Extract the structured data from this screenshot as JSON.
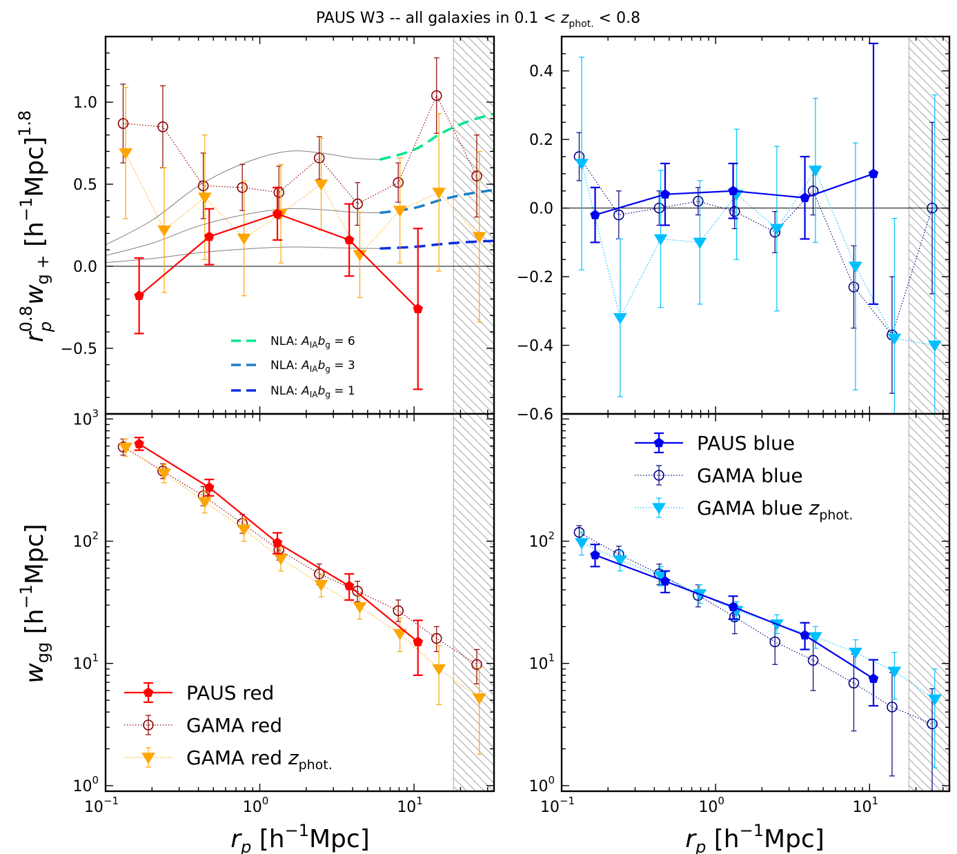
{
  "figure": {
    "title_prefix": "PAUS W3 -- all galaxies in 0.1 < ",
    "title_z": "z",
    "title_z_sub": "phot.",
    "title_suffix": " < 0.8"
  },
  "labels": {
    "wgplus_ylabel_r": "r",
    "wgplus_ylabel_r_sup": "0.8",
    "wgplus_ylabel_r_sub": "p",
    "wgplus_ylabel_w": "w",
    "wgplus_ylabel_w_sub": "g +",
    "wgplus_ylabel_unit": " [h",
    "wgplus_ylabel_unit_sup": "−1",
    "wgplus_ylabel_unit_end": "Mpc]",
    "wgplus_ylabel_pow": "1.8",
    "wgg_ylabel_w": "w",
    "wgg_ylabel_sub": "gg",
    "wgg_ylabel_unit": " [h",
    "wgg_ylabel_unit_sup": "−1",
    "wgg_ylabel_unit_end": "Mpc]",
    "xlabel_r": "r",
    "xlabel_r_sub": "p",
    "xlabel_unit": " [h",
    "xlabel_unit_sup": "−1",
    "xlabel_unit_end": "Mpc]"
  },
  "colors": {
    "paus_red": "#ff0000",
    "gama_red": "#8b0000",
    "gama_red_zphot": "#ffa500",
    "paus_blue": "#0000ee",
    "gama_blue": "#000080",
    "gama_blue_zphot": "#00bfff",
    "nla6": "#00e68a",
    "nla3": "#1a7fc4",
    "nla1": "#0a2ee0",
    "model_thin": "#808080"
  },
  "chart_data": [
    {
      "panel": "top-left",
      "type": "scatter",
      "xscale": "log",
      "xlim": [
        0.1,
        33
      ],
      "ylim": [
        -0.9,
        1.4
      ],
      "yticks": [
        -0.5,
        0.0,
        0.5,
        1.0
      ],
      "ytick_labels": [
        "−0.5",
        "0.0",
        "0.5",
        "1.0"
      ],
      "zero_line": true,
      "excluded_region": [
        18,
        33
      ],
      "series": [
        {
          "key": "gama_red",
          "marker": "open-circle",
          "line": "dotted",
          "x": [
            0.13,
            0.235,
            0.43,
            0.77,
            1.33,
            2.43,
            4.3,
            7.9,
            14.0,
            25.5
          ],
          "y": [
            0.87,
            0.85,
            0.49,
            0.48,
            0.45,
            0.66,
            0.38,
            0.51,
            1.04,
            0.55
          ],
          "err": [
            0.24,
            0.25,
            0.2,
            0.14,
            0.16,
            0.13,
            0.13,
            0.12,
            0.23,
            0.25
          ]
        },
        {
          "key": "gama_red_zphot",
          "marker": "triangle-down",
          "line": "dotted",
          "x": [
            0.135,
            0.24,
            0.44,
            0.79,
            1.37,
            2.5,
            4.45,
            8.1,
            14.5,
            26.5
          ],
          "y": [
            0.69,
            0.22,
            0.42,
            0.17,
            0.32,
            0.5,
            0.07,
            0.34,
            0.45,
            0.18
          ],
          "err": [
            0.4,
            0.38,
            0.38,
            0.35,
            0.3,
            0.28,
            0.26,
            0.32,
            0.48,
            0.52
          ]
        },
        {
          "key": "paus_red",
          "marker": "pentagon",
          "line": "solid",
          "x": [
            0.165,
            0.47,
            1.3,
            3.8,
            10.6
          ],
          "y": [
            -0.18,
            0.18,
            0.32,
            0.16,
            -0.26
          ],
          "err": [
            0.23,
            0.17,
            0.16,
            0.22,
            0.49
          ]
        }
      ],
      "models": [
        {
          "key": "nla6",
          "label_prefix": "NLA: ",
          "label_A": "A",
          "label_A_sub": "IA",
          "label_b": "b",
          "label_b_sub": "g",
          "label_eq": " = 6",
          "x": [
            0.1,
            0.2,
            0.4,
            0.8,
            1.5,
            2.5,
            4.0,
            6.0,
            10.0,
            15.0,
            22.0,
            33.0
          ],
          "y": [
            0.13,
            0.28,
            0.49,
            0.63,
            0.7,
            0.69,
            0.66,
            0.65,
            0.71,
            0.81,
            0.88,
            0.93
          ]
        },
        {
          "key": "nla3",
          "label_prefix": "NLA: ",
          "label_A": "A",
          "label_A_sub": "IA",
          "label_b": "b",
          "label_b_sub": "g",
          "label_eq": " = 3",
          "x": [
            0.1,
            0.2,
            0.4,
            0.8,
            1.5,
            2.5,
            4.0,
            6.0,
            10.0,
            15.0,
            22.0,
            33.0
          ],
          "y": [
            0.065,
            0.14,
            0.245,
            0.315,
            0.35,
            0.345,
            0.33,
            0.325,
            0.355,
            0.405,
            0.44,
            0.465
          ]
        },
        {
          "key": "nla1",
          "label_prefix": "NLA: ",
          "label_A": "A",
          "label_A_sub": "IA",
          "label_b": "b",
          "label_b_sub": "g",
          "label_eq": " = 1",
          "x": [
            0.1,
            0.2,
            0.4,
            0.8,
            1.5,
            2.5,
            4.0,
            6.0,
            10.0,
            15.0,
            22.0,
            33.0
          ],
          "y": [
            0.022,
            0.047,
            0.082,
            0.105,
            0.117,
            0.115,
            0.11,
            0.108,
            0.118,
            0.135,
            0.147,
            0.155
          ]
        }
      ],
      "model_dashed_from": 6.0
    },
    {
      "panel": "top-right",
      "type": "scatter",
      "xscale": "log",
      "xlim": [
        0.1,
        33
      ],
      "ylim": [
        -0.6,
        0.5
      ],
      "yticks": [
        -0.6,
        -0.4,
        -0.2,
        0.0,
        0.2,
        0.4
      ],
      "ytick_labels": [
        "−0.6",
        "−0.4",
        "−0.2",
        "0.0",
        "0.2",
        "0.4"
      ],
      "zero_line": true,
      "excluded_region": [
        18,
        33
      ],
      "series": [
        {
          "key": "gama_blue",
          "marker": "open-circle",
          "line": "dotted",
          "x": [
            0.13,
            0.235,
            0.43,
            0.77,
            1.33,
            2.43,
            4.3,
            7.9,
            14.0,
            25.5
          ],
          "y": [
            0.15,
            -0.02,
            0.0,
            0.02,
            -0.01,
            -0.07,
            0.05,
            -0.23,
            -0.37,
            0.0
          ],
          "err": [
            0.07,
            0.07,
            0.05,
            0.04,
            0.05,
            0.06,
            0.07,
            0.12,
            0.17,
            0.25
          ]
        },
        {
          "key": "gama_blue_zphot",
          "marker": "triangle-down",
          "line": "dotted",
          "x": [
            0.135,
            0.24,
            0.44,
            0.79,
            1.37,
            2.5,
            4.45,
            8.1,
            14.5,
            26.5
          ],
          "y": [
            0.13,
            -0.32,
            -0.09,
            -0.1,
            0.04,
            -0.06,
            0.11,
            -0.17,
            -0.38,
            -0.4
          ],
          "err": [
            0.31,
            0.23,
            0.2,
            0.18,
            0.19,
            0.24,
            0.21,
            0.36,
            0.35,
            0.73
          ]
        },
        {
          "key": "paus_blue",
          "marker": "pentagon",
          "line": "solid",
          "x": [
            0.165,
            0.47,
            1.3,
            3.8,
            10.6
          ],
          "y": [
            -0.02,
            0.04,
            0.05,
            0.03,
            0.1
          ],
          "err": [
            0.08,
            0.09,
            0.08,
            0.12,
            0.38
          ]
        }
      ]
    },
    {
      "panel": "bottom-left",
      "type": "scatter",
      "xscale": "log",
      "xlim": [
        0.1,
        33
      ],
      "yscale": "log",
      "ylim": [
        0.9,
        1100
      ],
      "ytick_labels": [
        {
          "base": "10",
          "exp": "0"
        },
        {
          "base": "10",
          "exp": "1"
        },
        {
          "base": "10",
          "exp": "2"
        },
        {
          "base": "10",
          "exp": "3"
        }
      ],
      "xtick_labels": [
        {
          "base": "10",
          "exp": "−1"
        },
        {
          "base": "10",
          "exp": "0"
        },
        {
          "base": "10",
          "exp": "1"
        }
      ],
      "excluded_region": [
        18,
        33
      ],
      "series": [
        {
          "key": "gama_red",
          "marker": "open-circle",
          "line": "dotted",
          "x": [
            0.13,
            0.235,
            0.43,
            0.77,
            1.33,
            2.43,
            4.3,
            7.9,
            14.0,
            25.5
          ],
          "y": [
            590,
            375,
            235,
            140,
            85,
            54,
            39,
            27,
            16,
            9.8
          ],
          "err_lo": [
            85,
            50,
            40,
            24,
            15,
            10,
            7,
            5,
            3.5,
            3
          ],
          "err_hi": [
            95,
            55,
            45,
            26,
            16,
            11,
            8,
            6,
            4,
            3.2
          ]
        },
        {
          "key": "gama_red_zphot",
          "marker": "triangle-down",
          "line": "dotted",
          "x": [
            0.135,
            0.24,
            0.44,
            0.79,
            1.37,
            2.5,
            4.45,
            8.1,
            14.5,
            26.5
          ],
          "y": [
            585,
            360,
            210,
            125,
            72,
            44,
            29,
            17.5,
            9.0,
            5.2
          ],
          "err_lo": [
            90,
            60,
            40,
            25,
            15,
            9,
            6,
            5,
            4.4,
            3.4
          ],
          "err_hi": [
            100,
            65,
            45,
            27,
            16,
            10,
            7,
            6,
            5,
            4
          ]
        },
        {
          "key": "paus_red",
          "marker": "pentagon",
          "line": "solid",
          "x": [
            0.165,
            0.47,
            1.3,
            3.8,
            10.6
          ],
          "y": [
            625,
            275,
            97,
            43,
            15
          ],
          "err_lo": [
            70,
            40,
            18,
            10,
            7
          ],
          "err_hi": [
            80,
            45,
            20,
            11,
            7.5
          ]
        }
      ],
      "legend": {
        "position": "lower left",
        "entries": [
          {
            "key": "paus_red",
            "marker": "pentagon",
            "line": "solid",
            "text": "PAUS red"
          },
          {
            "key": "gama_red",
            "marker": "open-circle",
            "line": "dotted",
            "text": "GAMA red"
          },
          {
            "key": "gama_red_zphot",
            "marker": "triangle-down",
            "line": "dotted",
            "text": "GAMA red ",
            "z": "z",
            "z_sub": "phot."
          }
        ]
      }
    },
    {
      "panel": "bottom-right",
      "type": "scatter",
      "xscale": "log",
      "xlim": [
        0.1,
        33
      ],
      "yscale": "log",
      "ylim": [
        0.9,
        1100
      ],
      "ytick_labels": [
        {
          "base": "10",
          "exp": "0"
        },
        {
          "base": "10",
          "exp": "1"
        },
        {
          "base": "10",
          "exp": "2"
        }
      ],
      "xtick_labels": [
        {
          "base": "10",
          "exp": "−1"
        },
        {
          "base": "10",
          "exp": "0"
        },
        {
          "base": "10",
          "exp": "1"
        }
      ],
      "excluded_region": [
        18,
        33
      ],
      "series": [
        {
          "key": "gama_blue",
          "marker": "open-circle",
          "line": "dotted",
          "x": [
            0.13,
            0.235,
            0.43,
            0.77,
            1.33,
            2.43,
            4.3,
            7.9,
            14.0,
            25.5
          ],
          "y": [
            118,
            78,
            54,
            36,
            24,
            15,
            10.6,
            6.9,
            4.4,
            3.2
          ],
          "err_lo": [
            15,
            12,
            10,
            7,
            6.5,
            5.2,
            4.6,
            4.1,
            3.2,
            2.6
          ],
          "err_hi": [
            16,
            13,
            11,
            8,
            7,
            6,
            5,
            5,
            4,
            3
          ]
        },
        {
          "key": "gama_blue_zphot",
          "marker": "triangle-down",
          "line": "dotted",
          "x": [
            0.135,
            0.24,
            0.44,
            0.79,
            1.37,
            2.5,
            4.45,
            8.1,
            14.5,
            26.5
          ],
          "y": [
            97,
            70,
            52,
            37,
            27,
            21,
            16.5,
            12.3,
            8.6,
            5.1
          ],
          "err_lo": [
            20,
            13,
            9,
            6,
            4.5,
            3.5,
            3.2,
            3,
            3.5,
            3.7
          ],
          "err_hi": [
            22,
            14,
            10,
            7,
            5,
            4,
            3.5,
            3.3,
            3.7,
            3.9
          ]
        },
        {
          "key": "paus_blue",
          "marker": "pentagon",
          "line": "solid",
          "x": [
            0.165,
            0.47,
            1.3,
            3.8,
            10.6
          ],
          "y": [
            77,
            47,
            29,
            17,
            7.5
          ],
          "err_lo": [
            15,
            9,
            6,
            4,
            3
          ],
          "err_hi": [
            17,
            10,
            6.5,
            4.5,
            3.2
          ]
        }
      ],
      "legend": {
        "position": "upper left",
        "entries": [
          {
            "key": "paus_blue",
            "marker": "pentagon",
            "line": "solid",
            "text": "PAUS blue"
          },
          {
            "key": "gama_blue",
            "marker": "open-circle",
            "line": "dotted",
            "text": "GAMA blue"
          },
          {
            "key": "gama_blue_zphot",
            "marker": "triangle-down",
            "line": "dotted",
            "text": "GAMA blue ",
            "z": "z",
            "z_sub": "phot."
          }
        ]
      }
    }
  ]
}
